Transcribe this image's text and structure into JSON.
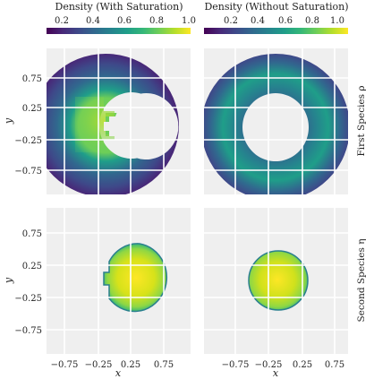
{
  "chart_data": [
    {
      "type": "heatmap",
      "panel": "top-left",
      "title": "Density (With Saturation)",
      "row_label": "First Species ρ",
      "xlabel": "",
      "ylabel": "y",
      "xlim": [
        -1.0,
        1.0
      ],
      "ylim": [
        -1.0,
        1.0
      ],
      "grid": true,
      "xticks": [],
      "yticks": [
        "0.75",
        "0.25",
        "−0.25",
        "−0.75"
      ],
      "shape": "annulus",
      "inner_radius": 0.35,
      "outer_radius": 0.85,
      "notch": "left side of the hole, near y = 0",
      "peak_density_location": "inner-left edge, around (-0.3, 0)",
      "density_range": [
        0.05,
        1.0
      ]
    },
    {
      "type": "heatmap",
      "panel": "top-right",
      "title": "Density (Without Saturation)",
      "row_label": "First Species ρ",
      "xlabel": "",
      "ylabel": "",
      "xlim": [
        -1.0,
        1.0
      ],
      "ylim": [
        -1.0,
        1.0
      ],
      "grid": true,
      "xticks": [],
      "yticks": [],
      "shape": "annulus",
      "inner_radius": 0.35,
      "outer_radius": 0.85,
      "peak_density_location": "uniform ring, highest toward the middle of the band",
      "density_range": [
        0.1,
        0.6
      ]
    },
    {
      "type": "heatmap",
      "panel": "bottom-left",
      "title": "",
      "row_label": "Second Species η",
      "xlabel": "x",
      "ylabel": "y",
      "xlim": [
        -1.0,
        1.0
      ],
      "ylim": [
        -1.0,
        1.0
      ],
      "grid": true,
      "xticks": [
        "−0.75",
        "−0.25",
        "0.25",
        "0.75"
      ],
      "yticks": [
        "0.75",
        "0.25",
        "−0.25",
        "−0.75"
      ],
      "shape": "disk",
      "center": [
        0.1,
        -0.07
      ],
      "radius": 0.32,
      "notch": "left side near y = -0.1",
      "density_range": [
        0.5,
        1.0
      ]
    },
    {
      "type": "heatmap",
      "panel": "bottom-right",
      "title": "",
      "row_label": "Second Species η",
      "xlabel": "x",
      "ylabel": "",
      "xlim": [
        -1.0,
        1.0
      ],
      "ylim": [
        -1.0,
        1.0
      ],
      "grid": true,
      "xticks": [
        "−0.75",
        "−0.25",
        "0.25",
        "0.75"
      ],
      "yticks": [],
      "shape": "disk",
      "center": [
        0.05,
        -0.1
      ],
      "radius": 0.32,
      "density_range": [
        0.55,
        1.0
      ]
    }
  ],
  "colorbars": [
    {
      "label": "Density (With Saturation)",
      "ticks": [
        "0.2",
        "0.4",
        "0.6",
        "0.8",
        "1.0"
      ],
      "range": [
        0.05,
        1.0
      ],
      "colormap": "viridis"
    },
    {
      "label": "Density (Without Saturation)",
      "ticks": [
        "0.2",
        "0.4",
        "0.6",
        "0.8",
        "1.0"
      ],
      "range": [
        0.05,
        1.0
      ],
      "colormap": "viridis"
    }
  ],
  "colors": {
    "panel_background": "#efefef",
    "grid": "#ffffff",
    "viridis": [
      "#440154",
      "#482878",
      "#3e4989",
      "#31688e",
      "#26828e",
      "#1f9e89",
      "#35b779",
      "#6ece58",
      "#b5de2b",
      "#fde725"
    ]
  }
}
